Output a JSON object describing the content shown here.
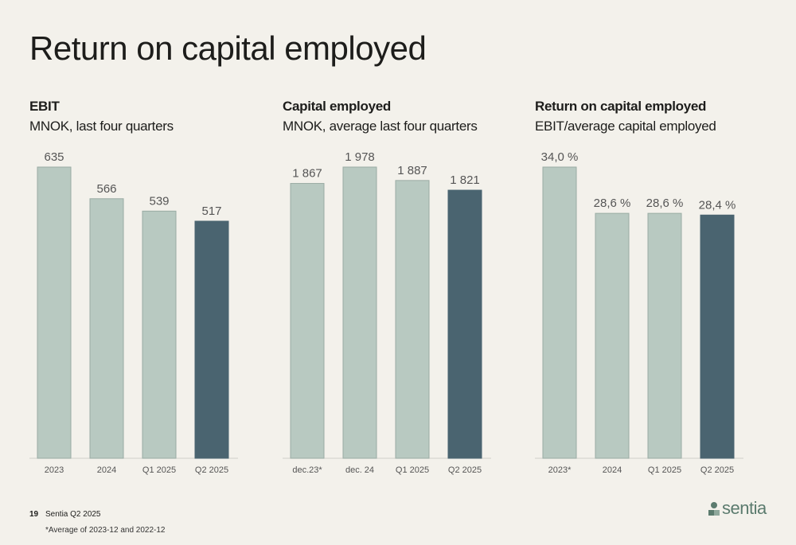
{
  "page": {
    "title": "Return on capital employed",
    "page_number": "19",
    "doc_label": "Sentia Q2 2025",
    "footnote": "*Average of 2023-12 and 2022-12",
    "logo_text": "sentia"
  },
  "colors": {
    "bar_light": "#b8c9c1",
    "bar_dark": "#4a6470",
    "bar_stroke": "#9aaca4",
    "label_text": "#555555",
    "logo": "#5b7b6e"
  },
  "chart_data": [
    {
      "type": "bar",
      "title": "EBIT",
      "subtitle": "MNOK, last four quarters",
      "categories": [
        "2023",
        "2024",
        "Q1 2025",
        "Q2 2025"
      ],
      "values": [
        635,
        566,
        539,
        517
      ],
      "value_labels": [
        "635",
        "566",
        "539",
        "517"
      ],
      "highlight_last": true,
      "ylim": [
        0,
        635
      ]
    },
    {
      "type": "bar",
      "title": "Capital employed",
      "subtitle": "MNOK, average last four quarters",
      "categories": [
        "dec.23*",
        "dec. 24",
        "Q1 2025",
        "Q2 2025"
      ],
      "values": [
        1867,
        1978,
        1887,
        1821
      ],
      "value_labels": [
        "1 867",
        "1 978",
        "1 887",
        "1 821"
      ],
      "highlight_last": true,
      "ylim": [
        0,
        1978
      ]
    },
    {
      "type": "bar",
      "title": "Return on capital employed",
      "subtitle": "EBIT/average capital employed",
      "categories": [
        "2023*",
        "2024",
        "Q1 2025",
        "Q2 2025"
      ],
      "values": [
        34.0,
        28.6,
        28.6,
        28.4
      ],
      "value_labels": [
        "34,0 %",
        "28,6 %",
        "28,6 %",
        "28,4 %"
      ],
      "highlight_last": true,
      "ylim": [
        0,
        34.0
      ]
    }
  ]
}
